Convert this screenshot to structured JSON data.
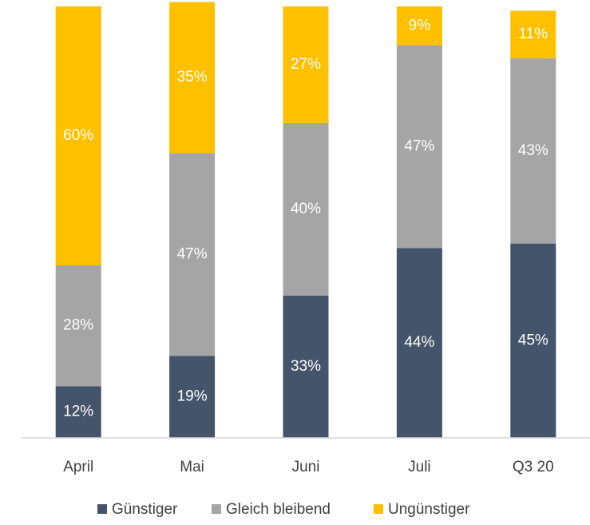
{
  "chart_data": {
    "type": "stacked_bar",
    "categories": [
      "April",
      "Mai",
      "Juni",
      "Juli",
      "Q3 20"
    ],
    "series": [
      {
        "name": "Günstiger",
        "color": "#44546a",
        "values": [
          12,
          19,
          33,
          44,
          45
        ],
        "value_labels": [
          "12%",
          "19%",
          "33%",
          "44%",
          "45%"
        ]
      },
      {
        "name": "Gleich bleibend",
        "color": "#a5a5a5",
        "values": [
          28,
          47,
          40,
          47,
          43
        ],
        "value_labels": [
          "28%",
          "47%",
          "40%",
          "47%",
          "43%"
        ]
      },
      {
        "name": "Ungünstiger",
        "color": "#ffc000",
        "values": [
          60,
          35,
          27,
          9,
          11
        ],
        "value_labels": [
          "60%",
          "35%",
          "27%",
          "9%",
          "11%"
        ]
      }
    ],
    "ylim": [
      0,
      100
    ],
    "legend": "bottom"
  }
}
